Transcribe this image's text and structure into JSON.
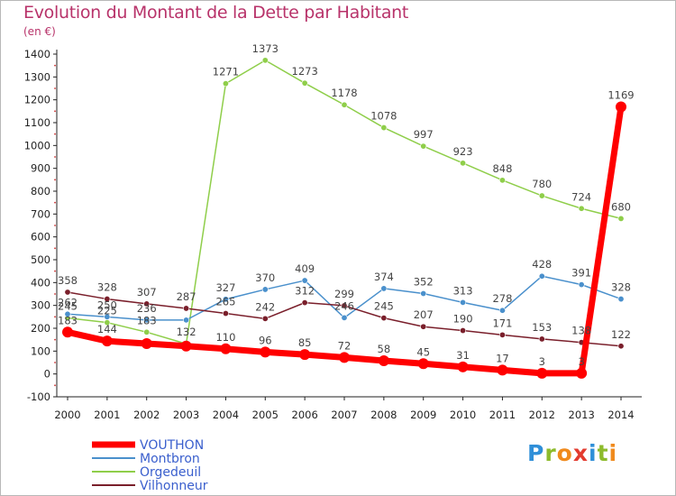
{
  "title": "Evolution du Montant de la Dette par Habitant",
  "subtitle": "(en €)",
  "brand": {
    "letters": [
      "P",
      "r",
      "o",
      "x",
      "i",
      "t",
      "i"
    ],
    "colors": [
      "#2f8fd8",
      "#8dbb2c",
      "#f08a1d",
      "#e33b2f",
      "#2f8fd8",
      "#8dbb2c",
      "#f08a1d"
    ]
  },
  "chart_data": {
    "type": "line",
    "x": [
      "2000",
      "2001",
      "2002",
      "2003",
      "2004",
      "2005",
      "2006",
      "2007",
      "2008",
      "2009",
      "2010",
      "2011",
      "2012",
      "2013",
      "2014"
    ],
    "ylim": [
      -100,
      1400
    ],
    "yticks": [
      "-100",
      "0",
      "100",
      "200",
      "300",
      "400",
      "500",
      "600",
      "700",
      "800",
      "900",
      "1000",
      "1100",
      "1200",
      "1300",
      "1400"
    ],
    "grid": false,
    "legend": "bottom-left",
    "series": [
      {
        "name": "Orgedeuil",
        "color": "#8fce4a",
        "width": 1.5,
        "values": [
          245,
          225,
          183,
          132,
          1271,
          1373,
          1273,
          1178,
          1078,
          997,
          923,
          848,
          780,
          724,
          680
        ],
        "labels": [
          "245",
          "225",
          "183",
          "132",
          "1271",
          "1373",
          "1273",
          "1178",
          "1078",
          "997",
          "923",
          "848",
          "780",
          "724",
          "680"
        ]
      },
      {
        "name": "Montbron",
        "color": "#4a90cc",
        "width": 1.5,
        "values": [
          262,
          250,
          236,
          236,
          327,
          370,
          409,
          246,
          374,
          352,
          313,
          278,
          428,
          391,
          328
        ],
        "labels": [
          "262",
          "250",
          "236",
          "",
          "327",
          "370",
          "409",
          "246",
          "374",
          "352",
          "313",
          "278",
          "428",
          "391",
          "328"
        ]
      },
      {
        "name": "Vilhonneur",
        "color": "#7a1f2b",
        "width": 1.5,
        "values": [
          358,
          328,
          307,
          287,
          265,
          242,
          312,
          299,
          245,
          207,
          190,
          171,
          153,
          138,
          122
        ],
        "labels": [
          "358",
          "328",
          "307",
          "287",
          "265",
          "242",
          "312",
          "299",
          "245",
          "207",
          "190",
          "171",
          "153",
          "138",
          "122"
        ]
      },
      {
        "name": "VOUTHON",
        "color": "#ff0000",
        "width": 7,
        "values": [
          183,
          144,
          133,
          122,
          110,
          96,
          85,
          72,
          58,
          45,
          31,
          17,
          3,
          3,
          1169
        ],
        "labels": [
          "183",
          "144",
          "",
          "",
          "110",
          "96",
          "85",
          "72",
          "58",
          "45",
          "31",
          "17",
          "3",
          "3",
          "1169"
        ]
      }
    ],
    "legend_order": [
      "VOUTHON",
      "Montbron",
      "Orgedeuil",
      "Vilhonneur"
    ]
  }
}
